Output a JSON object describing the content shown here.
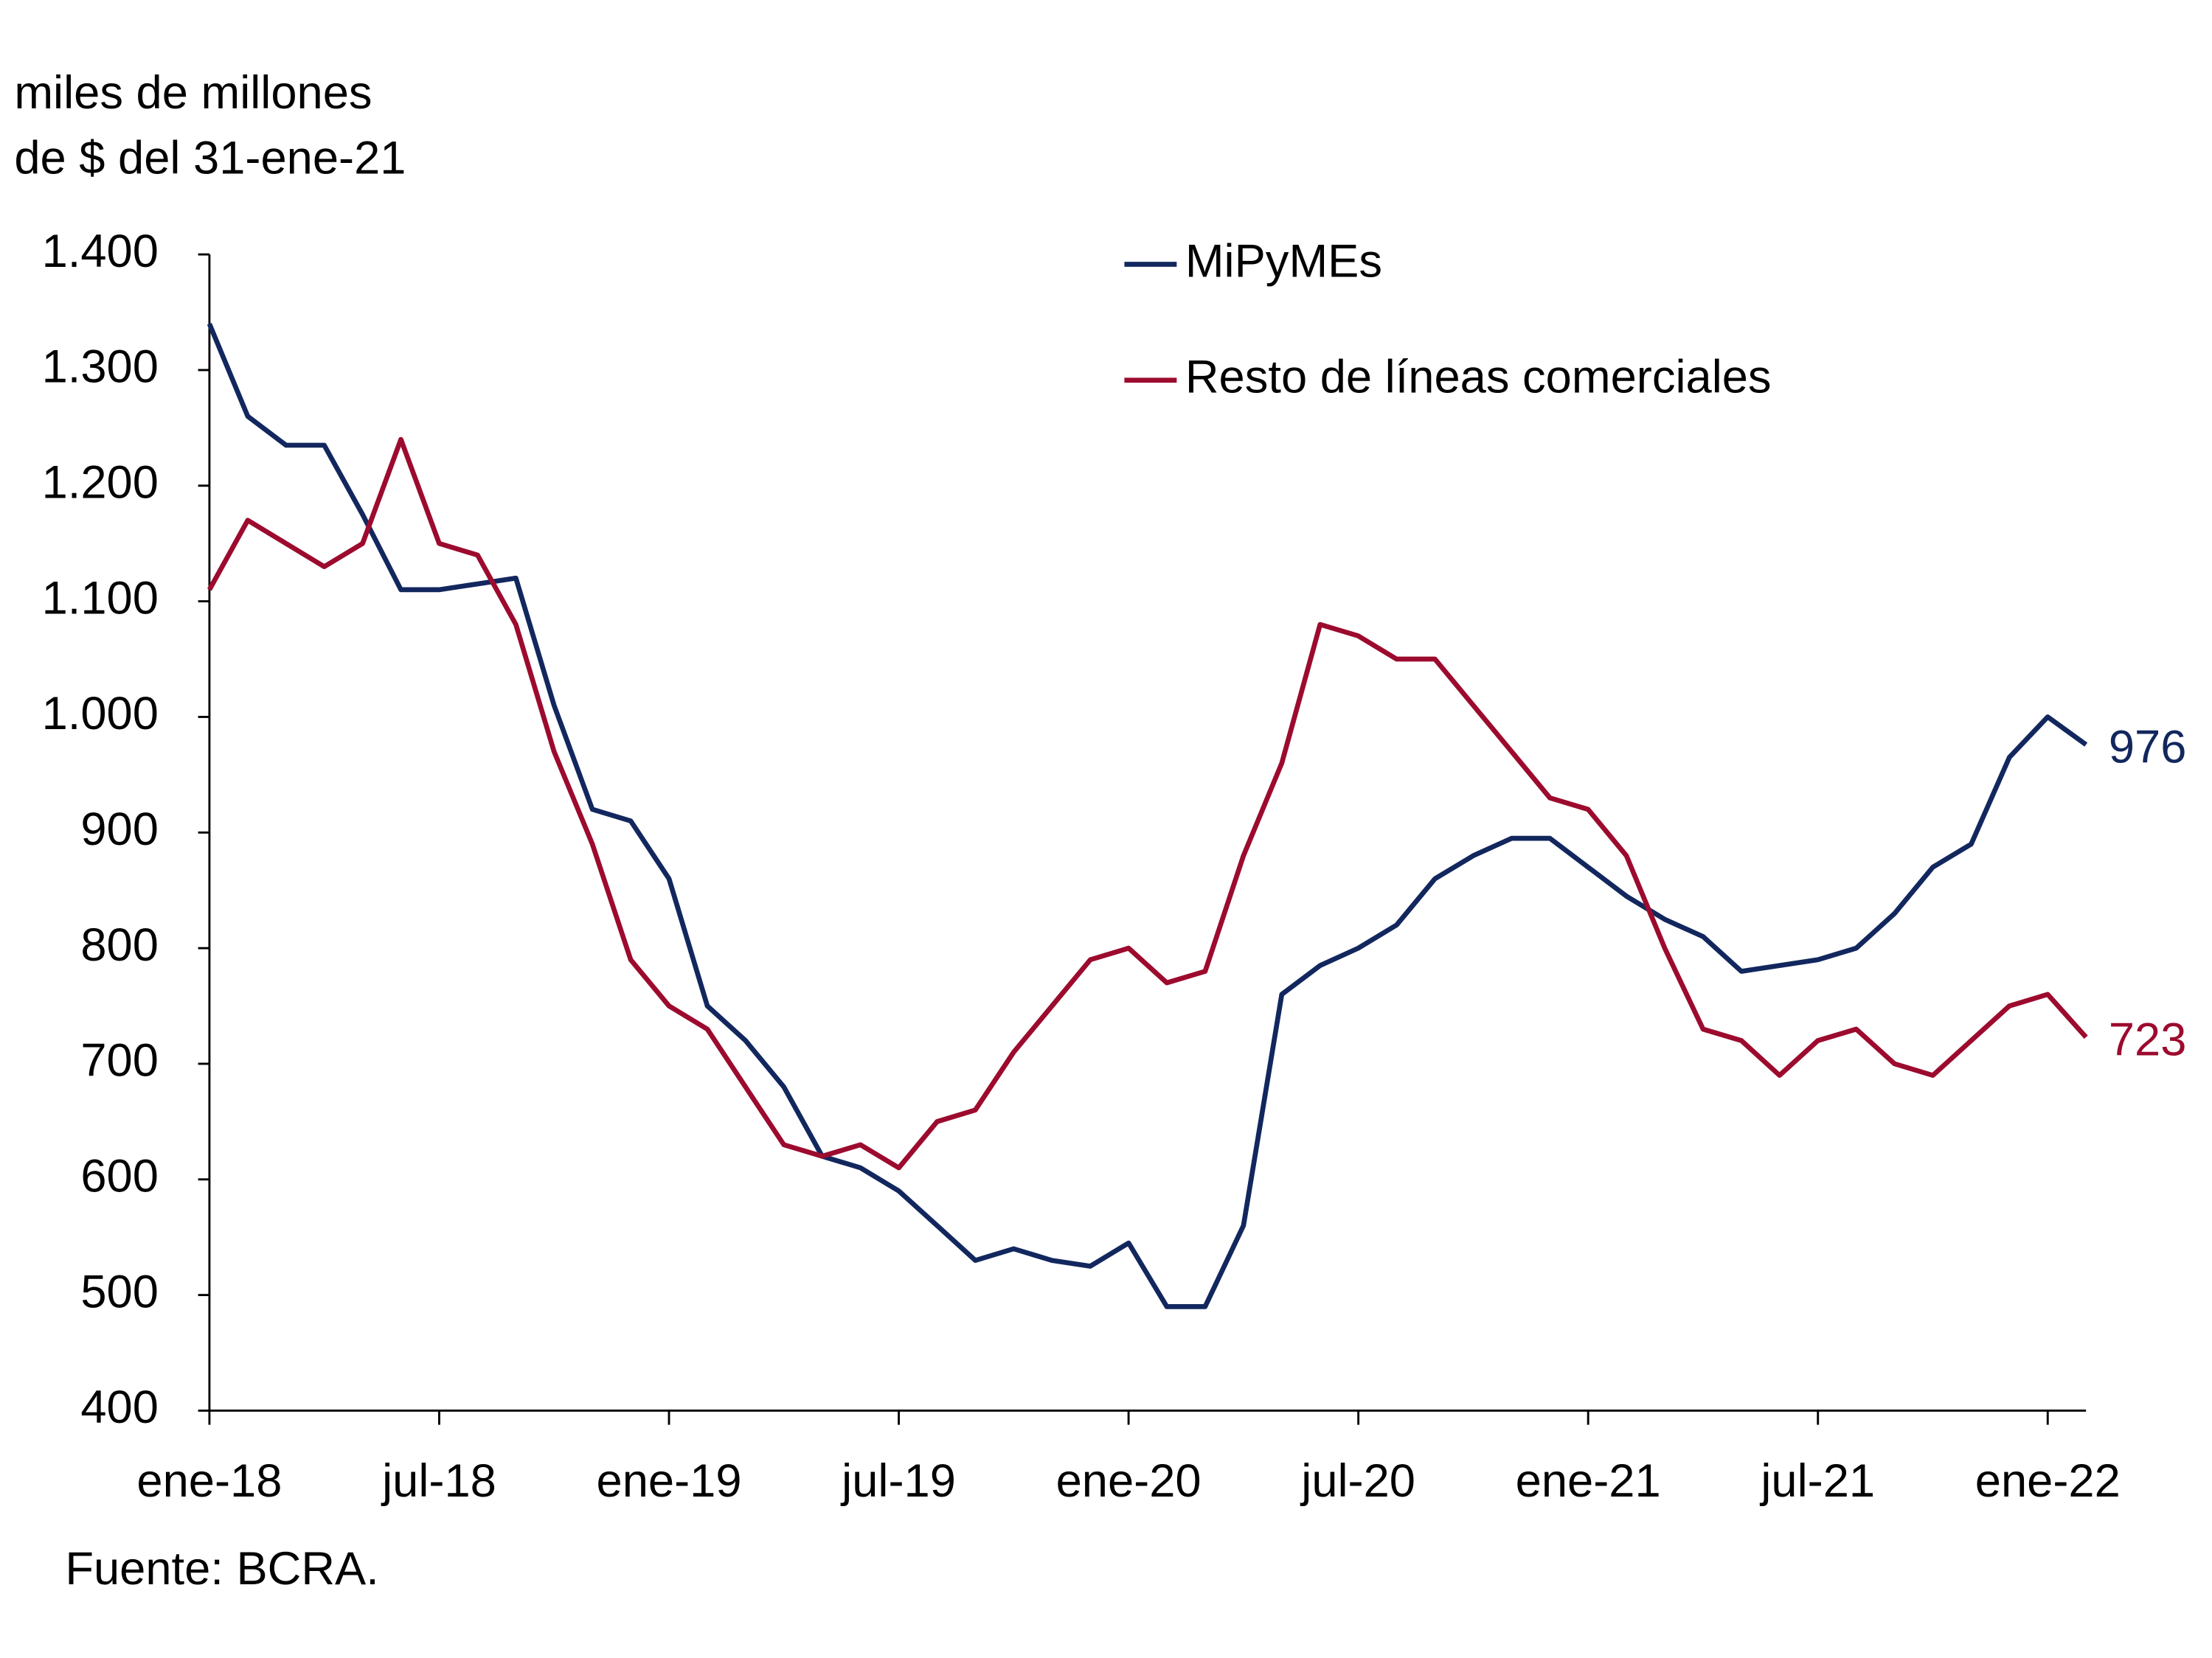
{
  "chart_data": {
    "type": "line",
    "ylabel": [
      "miles de millones",
      "de $ del 31-ene-21"
    ],
    "source": "Fuente: BCRA.",
    "x": [
      0,
      1,
      2,
      3,
      4,
      5,
      6,
      7,
      8,
      9,
      10,
      11,
      12,
      13,
      14,
      15,
      16,
      17,
      18,
      19,
      20,
      21,
      22,
      23,
      24,
      25,
      26,
      27,
      28,
      29,
      30,
      31,
      32,
      33,
      34,
      35,
      36,
      37,
      38,
      39,
      40,
      41,
      42,
      43,
      44,
      45,
      46,
      47,
      48,
      49
    ],
    "series": [
      {
        "name": "MiPyMEs",
        "color": "#12275e",
        "values": [
          1340,
          1260,
          1235,
          1235,
          1175,
          1110,
          1110,
          1115,
          1120,
          1010,
          920,
          910,
          860,
          750,
          720,
          680,
          620,
          610,
          590,
          560,
          530,
          540,
          530,
          525,
          545,
          490,
          490,
          560,
          760,
          785,
          800,
          820,
          860,
          880,
          895,
          895,
          870,
          845,
          825,
          810,
          780,
          785,
          790,
          800,
          830,
          870,
          890,
          965,
          1000,
          976
        ]
      },
      {
        "name": "Resto de líneas comerciales",
        "color": "#9c0b2e",
        "values": [
          1110,
          1170,
          1150,
          1130,
          1150,
          1240,
          1150,
          1140,
          1080,
          970,
          890,
          790,
          750,
          730,
          680,
          630,
          620,
          630,
          610,
          650,
          660,
          710,
          750,
          790,
          800,
          770,
          780,
          880,
          960,
          1080,
          1070,
          1050,
          1050,
          1010,
          970,
          930,
          920,
          880,
          800,
          730,
          720,
          690,
          720,
          730,
          700,
          690,
          720,
          750,
          760,
          723
        ]
      }
    ],
    "xlim": [
      0,
      49
    ],
    "xticks": [
      {
        "value": 0,
        "label": "ene-18"
      },
      {
        "value": 6,
        "label": "jul-18"
      },
      {
        "value": 12,
        "label": "ene-19"
      },
      {
        "value": 18,
        "label": "jul-19"
      },
      {
        "value": 24,
        "label": "ene-20"
      },
      {
        "value": 30,
        "label": "jul-20"
      },
      {
        "value": 36,
        "label": "ene-21"
      },
      {
        "value": 42,
        "label": "jul-21"
      },
      {
        "value": 48,
        "label": "ene-22"
      }
    ],
    "ylim": [
      400,
      1400
    ],
    "yticks": [
      400,
      500,
      600,
      700,
      800,
      900,
      {
        "value": 1000,
        "label": "1.000"
      },
      {
        "value": 1100,
        "label": "1.100"
      },
      {
        "value": 1200,
        "label": "1.200"
      },
      {
        "value": 1300,
        "label": "1.300"
      },
      {
        "value": 1400,
        "label": "1.400"
      }
    ],
    "grid": false,
    "legend": "top"
  }
}
